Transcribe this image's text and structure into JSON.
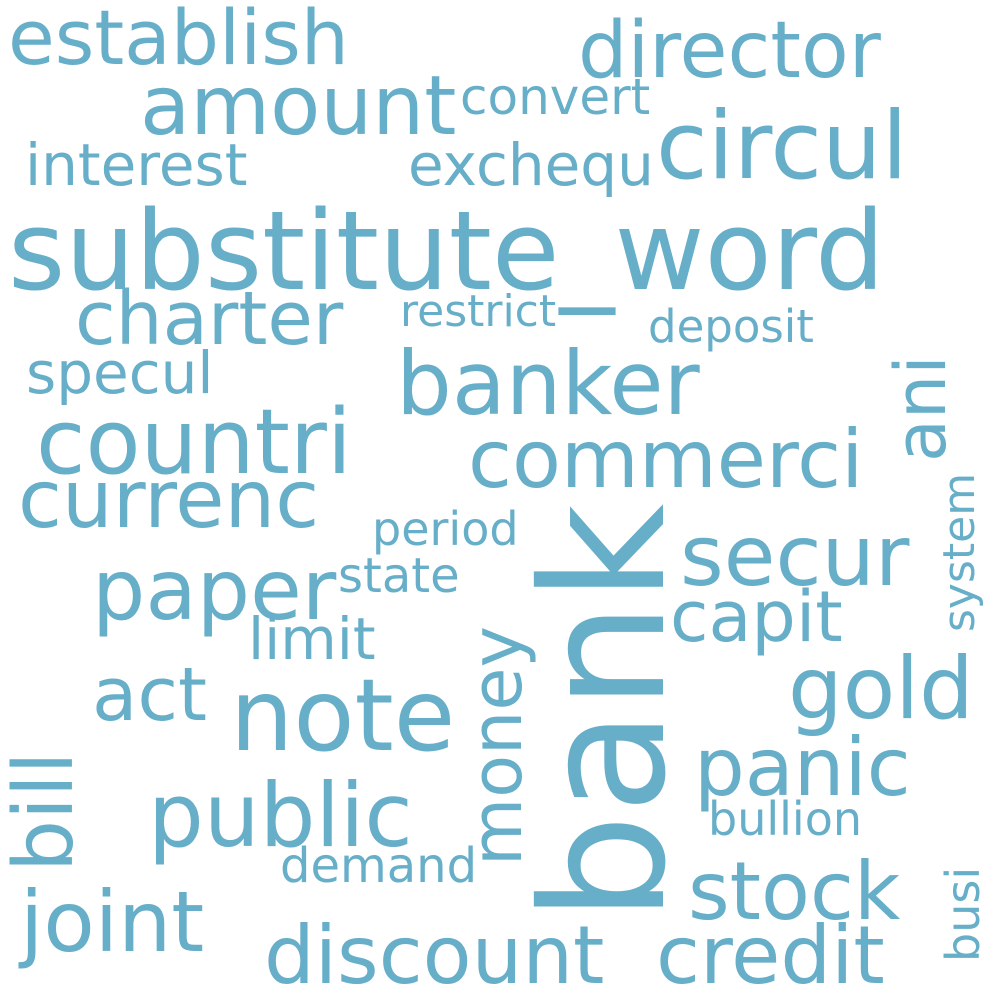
{
  "color": "#67aec9",
  "words": [
    "establish",
    "director",
    "amount",
    "convert",
    "circul",
    "interest",
    "exchequ",
    "substitute_word",
    "charter",
    "restrict",
    "deposit",
    "banker",
    "ani",
    "specul",
    "countri",
    "commerci",
    "currenc",
    "period",
    "bank",
    "secur",
    "system",
    "paper",
    "state",
    "capit",
    "limit",
    "money",
    "act",
    "note",
    "gold",
    "bill",
    "panic",
    "public",
    "bullion",
    "demand",
    "busi",
    "stock",
    "joint",
    "discount",
    "credit"
  ]
}
